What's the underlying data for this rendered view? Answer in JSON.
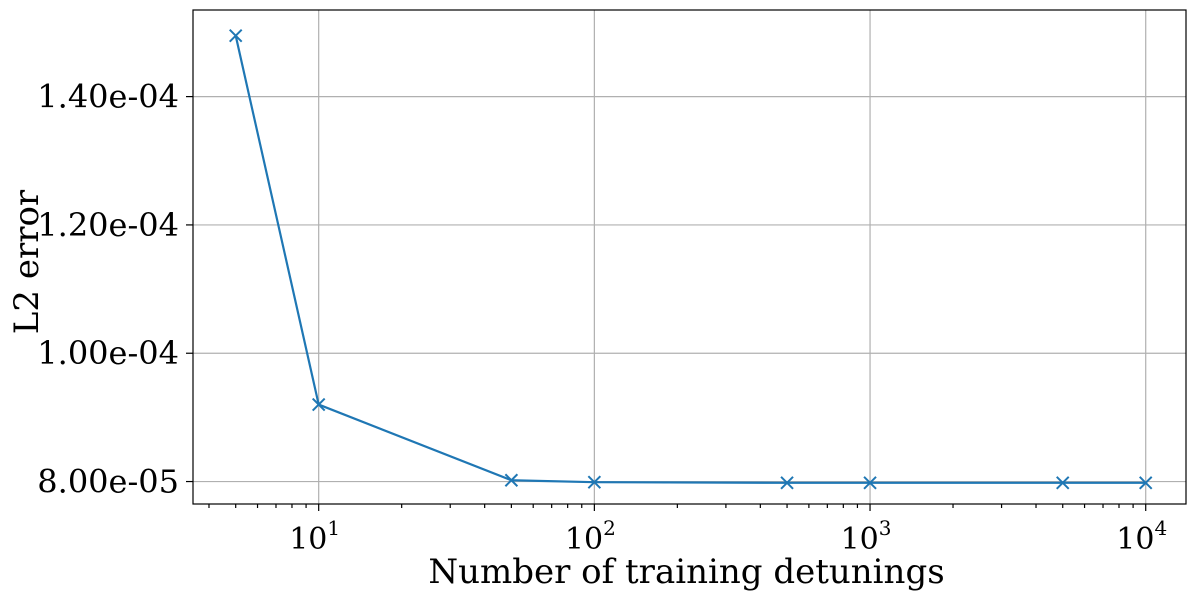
{
  "chart_data": {
    "type": "line",
    "xlabel": "Number of training detunings",
    "ylabel": "L2 error",
    "xscale": "log",
    "xlim": [
      3.5,
      14000
    ],
    "ylim": [
      7.65e-05,
      0.0001535
    ],
    "x_ticks": [
      {
        "value": 10,
        "base": "10",
        "exp": "1"
      },
      {
        "value": 100,
        "base": "10",
        "exp": "2"
      },
      {
        "value": 1000,
        "base": "10",
        "exp": "3"
      },
      {
        "value": 10000,
        "base": "10",
        "exp": "4"
      }
    ],
    "y_ticks": [
      {
        "value": 8e-05,
        "label": "8.00e-05"
      },
      {
        "value": 0.0001,
        "label": "1.00e-04"
      },
      {
        "value": 0.00012,
        "label": "1.20e-04"
      },
      {
        "value": 0.00014,
        "label": "1.40e-04"
      }
    ],
    "grid": true,
    "series": [
      {
        "color": "#1f77b4",
        "marker": "x",
        "x": [
          5,
          10,
          50,
          100,
          500,
          1000,
          5000,
          10000
        ],
        "y": [
          0.0001495,
          9.2e-05,
          8.02e-05,
          7.99e-05,
          7.98e-05,
          7.98e-05,
          7.98e-05,
          7.98e-05
        ]
      }
    ]
  }
}
